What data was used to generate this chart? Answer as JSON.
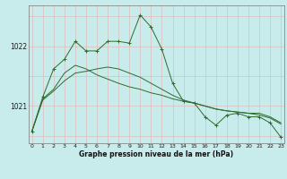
{
  "xlabel": "Graphe pression niveau de la mer (hPa)",
  "bg_color": "#c8ecec",
  "grid_color_v": "#ddbcbc",
  "grid_color_h": "#ddbcbc",
  "line_color": "#2d6b2d",
  "x": [
    0,
    1,
    2,
    3,
    4,
    5,
    6,
    7,
    8,
    9,
    10,
    11,
    12,
    13,
    14,
    15,
    16,
    17,
    18,
    19,
    20,
    21,
    22,
    23
  ],
  "y_jagged": [
    1020.58,
    1021.15,
    1021.62,
    1021.78,
    1022.08,
    1021.92,
    1021.92,
    1022.08,
    1022.08,
    1022.05,
    1022.52,
    1022.32,
    1021.95,
    1021.38,
    1021.08,
    1021.05,
    1020.82,
    1020.68,
    1020.85,
    1020.88,
    1020.82,
    1020.82,
    1020.72,
    1020.48
  ],
  "y_smooth1": [
    1020.58,
    1021.12,
    1021.28,
    1021.55,
    1021.68,
    1021.62,
    1021.52,
    1021.45,
    1021.38,
    1021.32,
    1021.28,
    1021.22,
    1021.18,
    1021.12,
    1021.08,
    1021.05,
    1021.0,
    1020.95,
    1020.92,
    1020.9,
    1020.88,
    1020.88,
    1020.82,
    1020.72
  ],
  "y_smooth2": [
    1020.58,
    1021.1,
    1021.25,
    1021.42,
    1021.55,
    1021.58,
    1021.62,
    1021.65,
    1021.62,
    1021.55,
    1021.48,
    1021.38,
    1021.28,
    1021.18,
    1021.1,
    1021.05,
    1021.0,
    1020.95,
    1020.92,
    1020.9,
    1020.88,
    1020.85,
    1020.8,
    1020.7
  ],
  "ylim": [
    1020.38,
    1022.68
  ],
  "yticks": [
    1021,
    1022
  ],
  "xticks": [
    0,
    1,
    2,
    3,
    4,
    5,
    6,
    7,
    8,
    9,
    10,
    11,
    12,
    13,
    14,
    15,
    16,
    17,
    18,
    19,
    20,
    21,
    22,
    23
  ],
  "figsize": [
    3.2,
    2.0
  ],
  "dpi": 100
}
